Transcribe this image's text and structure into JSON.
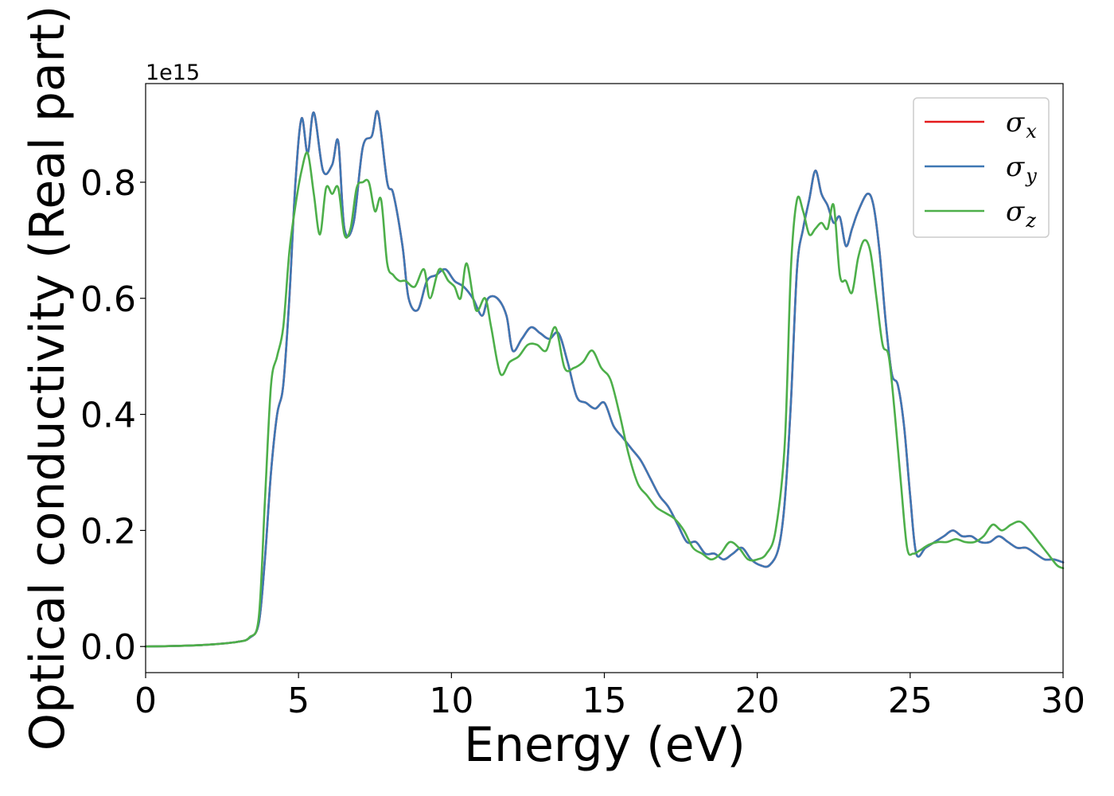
{
  "chart_data": {
    "type": "line",
    "title": "",
    "xlabel": "Energy (eV)",
    "ylabel": "Optical conductivity (Real part)",
    "y_offset_label": "1e15",
    "y_scale": 1000000000000000.0,
    "xlim": [
      0,
      30
    ],
    "ylim": [
      -0.045,
      0.97
    ],
    "xticks": [
      0,
      5,
      10,
      15,
      20,
      25,
      30
    ],
    "xtick_labels": [
      "0",
      "5",
      "10",
      "15",
      "20",
      "25",
      "30"
    ],
    "yticks": [
      0.0,
      0.2,
      0.4,
      0.6,
      0.8
    ],
    "ytick_labels": [
      "0.0",
      "0.2",
      "0.4",
      "0.6",
      "0.8"
    ],
    "grid": false,
    "legend_position": "top-right",
    "series": [
      {
        "name": "σx",
        "legend_base": "σ",
        "legend_sub": "x",
        "color": "#e41a1c",
        "x": [
          0,
          1,
          2,
          3,
          3.4,
          3.7,
          3.9,
          4.1,
          4.3,
          4.5,
          4.7,
          4.9,
          5.1,
          5.3,
          5.5,
          5.8,
          6.1,
          6.3,
          6.5,
          6.8,
          7.1,
          7.4,
          7.6,
          7.9,
          8.1,
          8.4,
          8.6,
          8.9,
          9.2,
          9.5,
          9.8,
          10.1,
          10.4,
          10.7,
          11.0,
          11.2,
          11.5,
          11.8,
          12.0,
          12.3,
          12.6,
          12.9,
          13.2,
          13.5,
          13.8,
          14.1,
          14.4,
          14.7,
          15.0,
          15.3,
          15.6,
          15.9,
          16.2,
          16.5,
          16.8,
          17.1,
          17.4,
          17.7,
          18.0,
          18.3,
          18.6,
          18.9,
          19.2,
          19.5,
          19.8,
          20.1,
          20.4,
          20.7,
          20.9,
          21.1,
          21.3,
          21.5,
          21.7,
          21.9,
          22.1,
          22.3,
          22.5,
          22.7,
          22.9,
          23.1,
          23.3,
          23.6,
          23.8,
          24.0,
          24.2,
          24.4,
          24.6,
          24.8,
          25.0,
          25.2,
          25.5,
          25.8,
          26.1,
          26.4,
          26.7,
          27.0,
          27.3,
          27.6,
          27.9,
          28.2,
          28.5,
          28.8,
          29.1,
          29.4,
          29.7,
          30.0
        ],
        "y": [
          0,
          0.001,
          0.003,
          0.008,
          0.015,
          0.04,
          0.15,
          0.3,
          0.4,
          0.45,
          0.6,
          0.8,
          0.91,
          0.85,
          0.92,
          0.82,
          0.83,
          0.87,
          0.72,
          0.73,
          0.86,
          0.88,
          0.92,
          0.8,
          0.78,
          0.69,
          0.6,
          0.58,
          0.63,
          0.64,
          0.65,
          0.63,
          0.62,
          0.6,
          0.57,
          0.6,
          0.6,
          0.57,
          0.51,
          0.53,
          0.55,
          0.54,
          0.53,
          0.54,
          0.49,
          0.43,
          0.42,
          0.41,
          0.42,
          0.38,
          0.36,
          0.34,
          0.32,
          0.29,
          0.26,
          0.24,
          0.21,
          0.18,
          0.18,
          0.16,
          0.16,
          0.15,
          0.16,
          0.17,
          0.15,
          0.14,
          0.14,
          0.17,
          0.25,
          0.42,
          0.65,
          0.72,
          0.77,
          0.82,
          0.78,
          0.76,
          0.73,
          0.74,
          0.69,
          0.72,
          0.75,
          0.78,
          0.76,
          0.68,
          0.56,
          0.47,
          0.45,
          0.38,
          0.26,
          0.16,
          0.17,
          0.18,
          0.19,
          0.2,
          0.19,
          0.19,
          0.18,
          0.18,
          0.19,
          0.18,
          0.17,
          0.17,
          0.16,
          0.15,
          0.15,
          0.145
        ]
      },
      {
        "name": "σy",
        "legend_base": "σ",
        "legend_sub": "y",
        "color": "#3e77b4",
        "x": [
          0,
          1,
          2,
          3,
          3.4,
          3.7,
          3.9,
          4.1,
          4.3,
          4.5,
          4.7,
          4.9,
          5.1,
          5.3,
          5.5,
          5.8,
          6.1,
          6.3,
          6.5,
          6.8,
          7.1,
          7.4,
          7.6,
          7.9,
          8.1,
          8.4,
          8.6,
          8.9,
          9.2,
          9.5,
          9.8,
          10.1,
          10.4,
          10.7,
          11.0,
          11.2,
          11.5,
          11.8,
          12.0,
          12.3,
          12.6,
          12.9,
          13.2,
          13.5,
          13.8,
          14.1,
          14.4,
          14.7,
          15.0,
          15.3,
          15.6,
          15.9,
          16.2,
          16.5,
          16.8,
          17.1,
          17.4,
          17.7,
          18.0,
          18.3,
          18.6,
          18.9,
          19.2,
          19.5,
          19.8,
          20.1,
          20.4,
          20.7,
          20.9,
          21.1,
          21.3,
          21.5,
          21.7,
          21.9,
          22.1,
          22.3,
          22.5,
          22.7,
          22.9,
          23.1,
          23.3,
          23.6,
          23.8,
          24.0,
          24.2,
          24.4,
          24.6,
          24.8,
          25.0,
          25.2,
          25.5,
          25.8,
          26.1,
          26.4,
          26.7,
          27.0,
          27.3,
          27.6,
          27.9,
          28.2,
          28.5,
          28.8,
          29.1,
          29.4,
          29.7,
          30.0
        ],
        "y": [
          0,
          0.001,
          0.003,
          0.008,
          0.015,
          0.04,
          0.15,
          0.3,
          0.4,
          0.45,
          0.6,
          0.8,
          0.91,
          0.85,
          0.92,
          0.82,
          0.83,
          0.87,
          0.72,
          0.73,
          0.86,
          0.88,
          0.92,
          0.8,
          0.78,
          0.69,
          0.6,
          0.58,
          0.63,
          0.64,
          0.65,
          0.63,
          0.62,
          0.6,
          0.57,
          0.6,
          0.6,
          0.57,
          0.51,
          0.53,
          0.55,
          0.54,
          0.53,
          0.54,
          0.49,
          0.43,
          0.42,
          0.41,
          0.42,
          0.38,
          0.36,
          0.34,
          0.32,
          0.29,
          0.26,
          0.24,
          0.21,
          0.18,
          0.18,
          0.16,
          0.16,
          0.15,
          0.16,
          0.17,
          0.15,
          0.14,
          0.14,
          0.17,
          0.25,
          0.42,
          0.65,
          0.72,
          0.77,
          0.82,
          0.78,
          0.76,
          0.73,
          0.74,
          0.69,
          0.72,
          0.75,
          0.78,
          0.76,
          0.68,
          0.56,
          0.47,
          0.45,
          0.38,
          0.26,
          0.16,
          0.17,
          0.18,
          0.19,
          0.2,
          0.19,
          0.19,
          0.18,
          0.18,
          0.19,
          0.18,
          0.17,
          0.17,
          0.16,
          0.15,
          0.15,
          0.145
        ]
      },
      {
        "name": "σz",
        "legend_base": "σ",
        "legend_sub": "z",
        "color": "#4daf4a",
        "x": [
          0,
          1,
          2,
          3,
          3.4,
          3.7,
          3.9,
          4.1,
          4.3,
          4.5,
          4.7,
          4.9,
          5.1,
          5.3,
          5.5,
          5.7,
          5.9,
          6.1,
          6.3,
          6.5,
          6.7,
          6.9,
          7.1,
          7.3,
          7.5,
          7.7,
          7.9,
          8.1,
          8.3,
          8.5,
          8.8,
          9.1,
          9.3,
          9.6,
          9.9,
          10.1,
          10.3,
          10.5,
          10.8,
          11.1,
          11.3,
          11.6,
          11.9,
          12.2,
          12.5,
          12.8,
          13.1,
          13.4,
          13.7,
          14.0,
          14.3,
          14.6,
          14.9,
          15.2,
          15.5,
          15.8,
          16.1,
          16.4,
          16.7,
          17.0,
          17.3,
          17.6,
          17.9,
          18.2,
          18.5,
          18.8,
          19.1,
          19.4,
          19.7,
          20.0,
          20.3,
          20.6,
          20.9,
          21.1,
          21.3,
          21.5,
          21.7,
          21.9,
          22.1,
          22.3,
          22.5,
          22.7,
          22.9,
          23.1,
          23.3,
          23.5,
          23.7,
          23.9,
          24.1,
          24.3,
          24.5,
          24.7,
          24.9,
          25.1,
          25.3,
          25.6,
          25.9,
          26.2,
          26.5,
          26.8,
          27.1,
          27.4,
          27.7,
          28.0,
          28.3,
          28.6,
          28.9,
          29.2,
          29.5,
          29.8,
          30.0
        ],
        "y": [
          0,
          0.001,
          0.003,
          0.008,
          0.016,
          0.05,
          0.25,
          0.45,
          0.5,
          0.55,
          0.68,
          0.76,
          0.82,
          0.85,
          0.78,
          0.71,
          0.79,
          0.78,
          0.79,
          0.71,
          0.72,
          0.79,
          0.8,
          0.8,
          0.75,
          0.77,
          0.66,
          0.64,
          0.63,
          0.63,
          0.62,
          0.65,
          0.6,
          0.65,
          0.63,
          0.62,
          0.6,
          0.66,
          0.58,
          0.6,
          0.55,
          0.47,
          0.49,
          0.5,
          0.52,
          0.52,
          0.51,
          0.55,
          0.48,
          0.48,
          0.49,
          0.51,
          0.48,
          0.46,
          0.4,
          0.33,
          0.28,
          0.26,
          0.24,
          0.23,
          0.22,
          0.2,
          0.17,
          0.16,
          0.15,
          0.16,
          0.18,
          0.17,
          0.15,
          0.15,
          0.16,
          0.2,
          0.35,
          0.65,
          0.77,
          0.75,
          0.71,
          0.72,
          0.73,
          0.72,
          0.76,
          0.64,
          0.63,
          0.61,
          0.67,
          0.7,
          0.68,
          0.6,
          0.52,
          0.5,
          0.4,
          0.28,
          0.17,
          0.16,
          0.165,
          0.175,
          0.18,
          0.18,
          0.185,
          0.18,
          0.18,
          0.19,
          0.21,
          0.2,
          0.21,
          0.215,
          0.2,
          0.18,
          0.16,
          0.14,
          0.135
        ]
      }
    ]
  }
}
